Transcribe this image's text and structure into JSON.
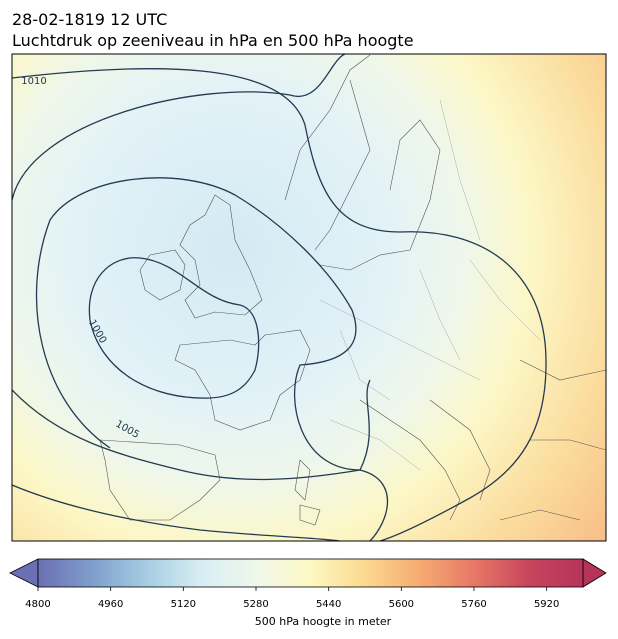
{
  "header": {
    "title": "28-02-1819 12 UTC",
    "subtitle": "Luchtdruk op zeeniveau in hPa en 500 hPa hoogte"
  },
  "map": {
    "contour_labels": [
      1010,
      1000,
      1005
    ]
  },
  "colorbar": {
    "label": "500 hPa hoogte in meter",
    "lim": [
      4800,
      6000
    ],
    "ticks": [
      4800,
      4960,
      5120,
      5280,
      5440,
      5600,
      5760,
      5920
    ],
    "colors": [
      "#6b6fb3",
      "#7f9fcc",
      "#a6cde2",
      "#d8eef4",
      "#eef7ea",
      "#fdf8c2",
      "#fbd98f",
      "#f6ab72",
      "#e77866",
      "#c8455c",
      "#b5345a"
    ]
  }
}
